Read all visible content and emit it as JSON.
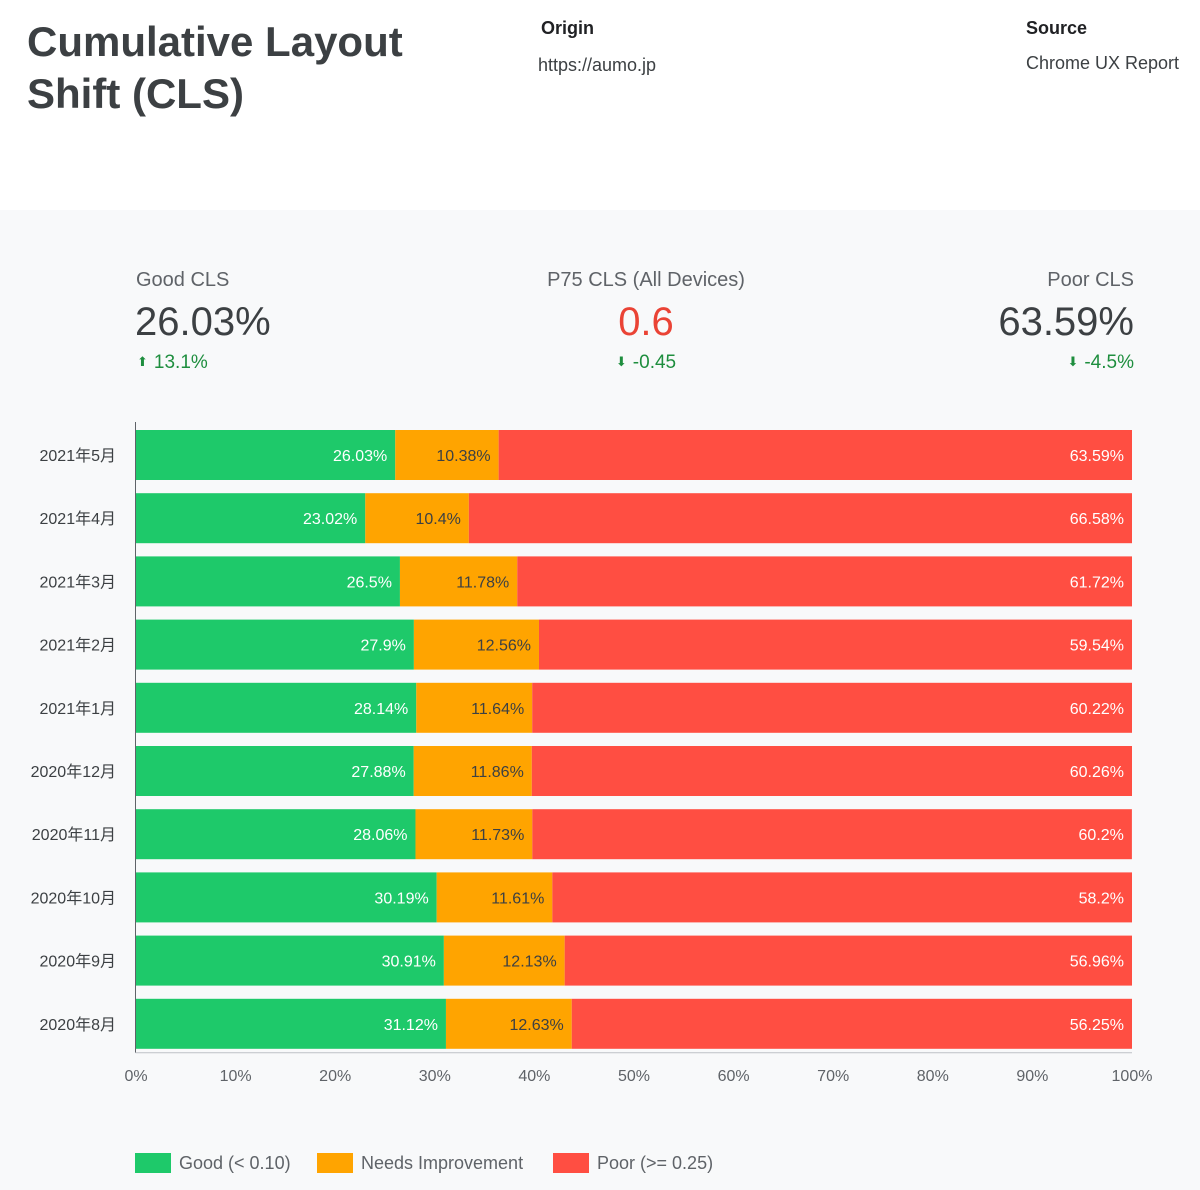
{
  "header": {
    "title": "Cumulative Layout Shift (CLS)",
    "origin_label": "Origin",
    "origin_value": "https://aumo.jp",
    "source_label": "Source",
    "source_value": "Chrome UX Report"
  },
  "kpis": {
    "good": {
      "label": "Good CLS",
      "value": "26.03%",
      "delta": "13.1%",
      "arrow": "⬆"
    },
    "p75": {
      "label": "P75 CLS (All Devices)",
      "value": "0.6",
      "delta": "-0.45",
      "arrow": "⬇"
    },
    "poor": {
      "label": "Poor CLS",
      "value": "63.59%",
      "delta": "-4.5%",
      "arrow": "⬇"
    }
  },
  "colors": {
    "good": "#1ec96a",
    "needs": "#ffa400",
    "poor": "#ff4e42",
    "p75_value": "#ea4335",
    "delta": "#1e8e3e"
  },
  "chart_data": {
    "type": "bar",
    "orientation": "horizontal",
    "stacked": true,
    "categories": [
      "2021年5月",
      "2021年4月",
      "2021年3月",
      "2021年2月",
      "2021年1月",
      "2020年12月",
      "2020年11月",
      "2020年10月",
      "2020年9月",
      "2020年8月"
    ],
    "series": [
      {
        "name": "Good (< 0.10)",
        "values": [
          26.03,
          23.02,
          26.5,
          27.9,
          28.14,
          27.88,
          28.06,
          30.19,
          30.91,
          31.12
        ]
      },
      {
        "name": "Needs Improvement",
        "values": [
          10.38,
          10.4,
          11.78,
          12.56,
          11.64,
          11.86,
          11.73,
          11.61,
          12.13,
          12.63
        ]
      },
      {
        "name": "Poor (>= 0.25)",
        "values": [
          63.59,
          66.58,
          61.72,
          59.54,
          60.22,
          60.26,
          60.2,
          58.2,
          56.96,
          56.25
        ]
      }
    ],
    "xlim": [
      0,
      100
    ],
    "x_ticks": [
      "0%",
      "10%",
      "20%",
      "30%",
      "40%",
      "50%",
      "60%",
      "70%",
      "80%",
      "90%",
      "100%"
    ],
    "legend_position": "bottom-left",
    "grid": false
  }
}
